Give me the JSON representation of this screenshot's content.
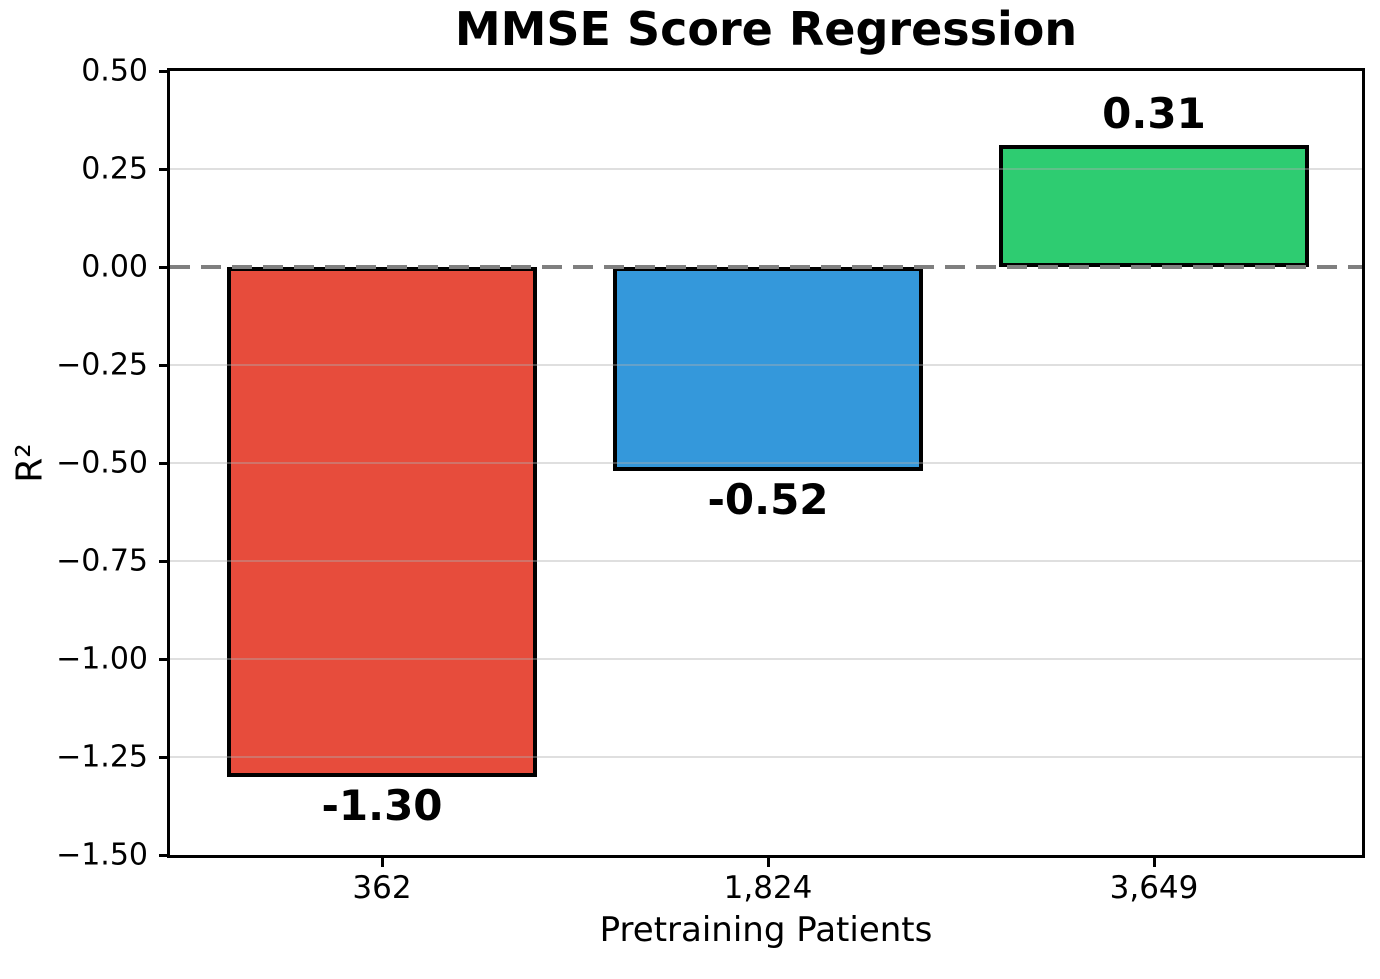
{
  "chart_data": {
    "type": "bar",
    "title": "MMSE Score Regression",
    "xlabel": "Pretraining Patients",
    "ylabel": "R²",
    "categories": [
      "362",
      "1,824",
      "3,649"
    ],
    "values": [
      -1.3,
      -0.52,
      0.31
    ],
    "bar_labels": [
      "-1.30",
      "-0.52",
      "0.31"
    ],
    "bar_colors": [
      "#e74c3c",
      "#3498db",
      "#2ecc71"
    ],
    "bar_edge_color": "#000000",
    "ylim": [
      -1.5,
      0.5
    ],
    "yticks": [
      0.5,
      0.25,
      0.0,
      -0.25,
      -0.5,
      -0.75,
      -1.0,
      -1.25,
      -1.5
    ],
    "ytick_labels": [
      "0.50",
      "0.25",
      "0.00",
      "−0.25",
      "−0.50",
      "−0.75",
      "−1.00",
      "−1.25",
      "−1.50"
    ],
    "zero_line": {
      "value": 0,
      "style": "dashed",
      "color": "#7f7f7f"
    },
    "grid": true,
    "grid_color": "rgba(176,176,176,0.4)",
    "legend_position": "none"
  }
}
